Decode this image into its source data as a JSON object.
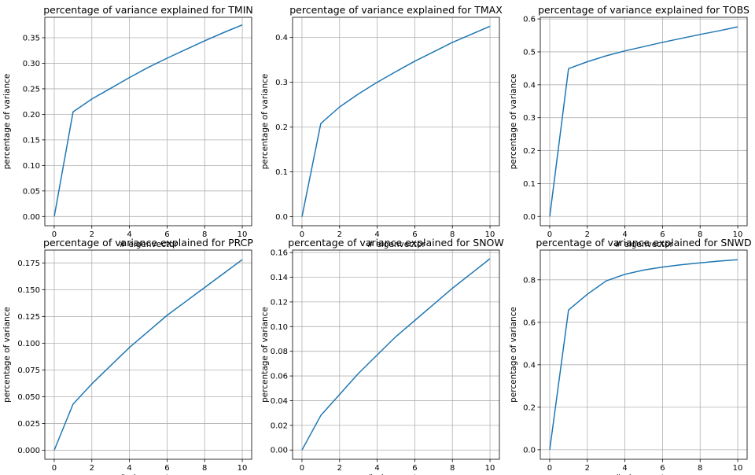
{
  "chart_data": [
    {
      "type": "line",
      "title": "percentage of variance explained for TMIN",
      "xlabel": "# eigenvector",
      "ylabel": "percentage of variance",
      "xlim": [
        -0.5,
        10.5
      ],
      "ylim": [
        -0.018,
        0.39
      ],
      "xticks": [
        0,
        2,
        4,
        6,
        8,
        10
      ],
      "yticks": [
        "0.00",
        "0.05",
        "0.10",
        "0.15",
        "0.20",
        "0.25",
        "0.30",
        "0.35"
      ],
      "grid": true,
      "x": [
        0,
        1,
        2,
        3,
        4,
        5,
        6,
        7,
        8,
        9,
        10
      ],
      "values": [
        0.0,
        0.205,
        0.23,
        0.251,
        0.272,
        0.292,
        0.31,
        0.327,
        0.344,
        0.36,
        0.375
      ]
    },
    {
      "type": "line",
      "title": "percentage of variance explained for TMAX",
      "xlabel": "# eigenvector",
      "ylabel": "percentage of variance",
      "xlim": [
        -0.5,
        10.5
      ],
      "ylim": [
        -0.02,
        0.445
      ],
      "xticks": [
        0,
        2,
        4,
        6,
        8,
        10
      ],
      "yticks": [
        "0.0",
        "0.1",
        "0.2",
        "0.3",
        "0.4"
      ],
      "grid": true,
      "x": [
        0,
        1,
        2,
        3,
        4,
        5,
        6,
        7,
        8,
        9,
        10
      ],
      "values": [
        0.0,
        0.208,
        0.245,
        0.274,
        0.3,
        0.324,
        0.347,
        0.368,
        0.389,
        0.407,
        0.425
      ]
    },
    {
      "type": "line",
      "title": "percentage of variance explained for TOBS",
      "xlabel": "# eigenvector",
      "ylabel": "percentage of variance",
      "xlim": [
        -0.5,
        10.5
      ],
      "ylim": [
        -0.028,
        0.605
      ],
      "xticks": [
        0,
        2,
        4,
        6,
        8,
        10
      ],
      "yticks": [
        "0.0",
        "0.1",
        "0.2",
        "0.3",
        "0.4",
        "0.5",
        "0.6"
      ],
      "grid": true,
      "x": [
        0,
        1,
        2,
        3,
        4,
        5,
        6,
        7,
        8,
        9,
        10
      ],
      "values": [
        0.0,
        0.449,
        0.47,
        0.488,
        0.503,
        0.516,
        0.529,
        0.541,
        0.553,
        0.564,
        0.576
      ]
    },
    {
      "type": "line",
      "title": "percentage of variance explained for PRCP",
      "xlabel": "# eigenvector",
      "ylabel": "percentage of variance",
      "xlim": [
        -0.5,
        10.5
      ],
      "ylim": [
        -0.0085,
        0.187
      ],
      "xticks": [
        0,
        2,
        4,
        6,
        8,
        10
      ],
      "yticks": [
        "0.000",
        "0.025",
        "0.050",
        "0.075",
        "0.100",
        "0.125",
        "0.150",
        "0.175"
      ],
      "grid": true,
      "x": [
        0,
        1,
        2,
        3,
        4,
        5,
        6,
        7,
        8,
        9,
        10
      ],
      "values": [
        0.0,
        0.043,
        0.062,
        0.079,
        0.096,
        0.111,
        0.126,
        0.139,
        0.152,
        0.165,
        0.178
      ]
    },
    {
      "type": "line",
      "title": "percentage of variance explained for SNOW",
      "xlabel": "# eigenvector",
      "ylabel": "percentage of variance",
      "xlim": [
        -0.5,
        10.5
      ],
      "ylim": [
        -0.0075,
        0.162
      ],
      "xticks": [
        0,
        2,
        4,
        6,
        8,
        10
      ],
      "yticks": [
        "0.00",
        "0.02",
        "0.04",
        "0.06",
        "0.08",
        "0.10",
        "0.12",
        "0.14",
        "0.16"
      ],
      "grid": true,
      "x": [
        0,
        1,
        2,
        3,
        4,
        5,
        6,
        7,
        8,
        9,
        10
      ],
      "values": [
        0.0,
        0.028,
        0.045,
        0.062,
        0.077,
        0.092,
        0.105,
        0.118,
        0.131,
        0.143,
        0.155
      ]
    },
    {
      "type": "line",
      "title": "percentage of variance explained for SNWD",
      "xlabel": "# eigenvector",
      "ylabel": "percentage of variance",
      "xlim": [
        -0.5,
        10.5
      ],
      "ylim": [
        -0.045,
        0.94
      ],
      "xticks": [
        0,
        2,
        4,
        6,
        8,
        10
      ],
      "yticks": [
        "0.0",
        "0.2",
        "0.4",
        "0.6",
        "0.8"
      ],
      "grid": true,
      "x": [
        0,
        1,
        2,
        3,
        4,
        5,
        6,
        7,
        8,
        9,
        10
      ],
      "values": [
        0.0,
        0.658,
        0.732,
        0.795,
        0.826,
        0.846,
        0.86,
        0.871,
        0.88,
        0.888,
        0.895
      ]
    }
  ]
}
